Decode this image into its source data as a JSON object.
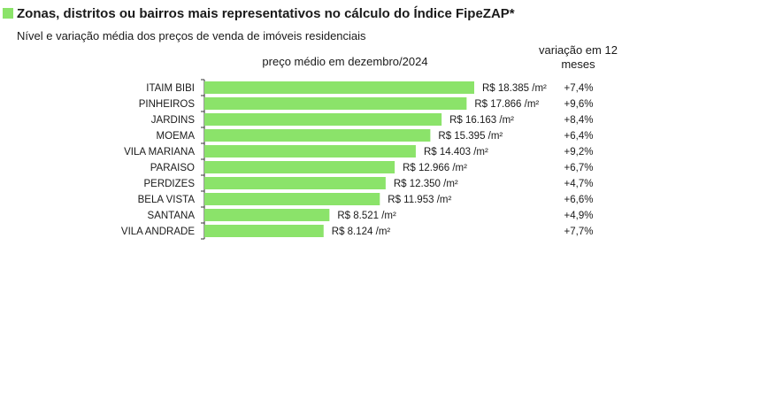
{
  "title": "Zonas, distritos ou bairros mais representativos no cálculo do Índice FipeZAP*",
  "subtitle": "Nível e variação média dos preços de venda de imóveis residenciais",
  "accent_color": "#8be36a",
  "bar_color": "#8be36a",
  "chart_data": {
    "type": "bar",
    "orientation": "horizontal",
    "column_header_price": "preço médio em dezembro/2024",
    "column_header_variation": "variação em 12 meses",
    "categories": [
      "ITAIM BIBI",
      "PINHEIROS",
      "JARDINS",
      "MOEMA",
      "VILA MARIANA",
      "PARAISO",
      "PERDIZES",
      "BELA VISTA",
      "SANTANA",
      "VILA ANDRADE"
    ],
    "values": [
      18385,
      17866,
      16163,
      15395,
      14403,
      12966,
      12350,
      11953,
      8521,
      8124
    ],
    "value_labels": [
      "R$ 18.385 /m²",
      "R$ 17.866 /m²",
      "R$ 16.163 /m²",
      "R$ 15.395 /m²",
      "R$ 14.403 /m²",
      "R$ 12.966 /m²",
      "R$ 12.350 /m²",
      "R$ 11.953 /m²",
      "R$ 8.521 /m²",
      "R$ 8.124 /m²"
    ],
    "variation_labels": [
      "+7,4%",
      "+9,6%",
      "+8,4%",
      "+6,4%",
      "+9,2%",
      "+6,7%",
      "+4,7%",
      "+6,6%",
      "+4,9%",
      "+7,7%"
    ],
    "variation_values": [
      7.4,
      9.6,
      8.4,
      6.4,
      9.2,
      6.7,
      4.7,
      6.6,
      4.9,
      7.7
    ],
    "xlim": [
      0,
      18385
    ],
    "grid": false
  }
}
